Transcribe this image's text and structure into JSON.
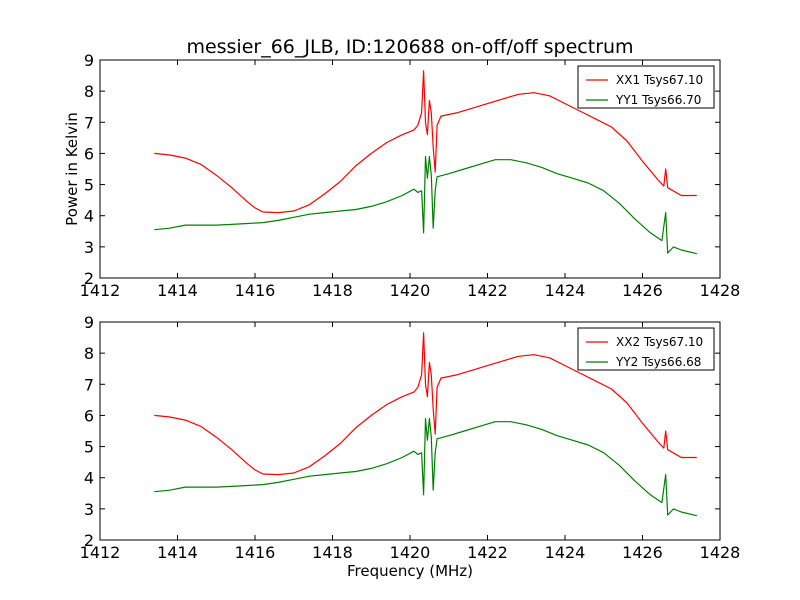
{
  "title": "messier_66_JLB, ID:120688 on-off/off spectrum",
  "chart_data": [
    {
      "type": "line",
      "ylabel": "Power in Kelvin",
      "xlabel": "",
      "xlim": [
        1412,
        1428
      ],
      "ylim": [
        2,
        9
      ],
      "xticks": [
        "1412",
        "1414",
        "1416",
        "1418",
        "1420",
        "1422",
        "1424",
        "1426",
        "1428"
      ],
      "yticks": [
        "2",
        "3",
        "4",
        "5",
        "6",
        "7",
        "8",
        "9"
      ],
      "grid": false,
      "legend": "top-right",
      "series": [
        {
          "name": "XX1 Tsys67.10",
          "color": "#ff0000",
          "points": [
            [
              1413.4,
              6.0
            ],
            [
              1413.8,
              5.95
            ],
            [
              1414.2,
              5.85
            ],
            [
              1414.6,
              5.65
            ],
            [
              1415.0,
              5.3
            ],
            [
              1415.4,
              4.9
            ],
            [
              1415.8,
              4.45
            ],
            [
              1416.0,
              4.25
            ],
            [
              1416.2,
              4.12
            ],
            [
              1416.6,
              4.1
            ],
            [
              1417.0,
              4.15
            ],
            [
              1417.4,
              4.35
            ],
            [
              1417.8,
              4.7
            ],
            [
              1418.2,
              5.1
            ],
            [
              1418.6,
              5.6
            ],
            [
              1419.0,
              6.0
            ],
            [
              1419.4,
              6.35
            ],
            [
              1419.8,
              6.6
            ],
            [
              1420.1,
              6.75
            ],
            [
              1420.2,
              6.9
            ],
            [
              1420.3,
              7.3
            ],
            [
              1420.35,
              8.65
            ],
            [
              1420.4,
              7.0
            ],
            [
              1420.45,
              6.6
            ],
            [
              1420.5,
              7.7
            ],
            [
              1420.55,
              7.3
            ],
            [
              1420.6,
              6.2
            ],
            [
              1420.65,
              5.4
            ],
            [
              1420.7,
              6.9
            ],
            [
              1420.8,
              7.2
            ],
            [
              1421.2,
              7.3
            ],
            [
              1421.6,
              7.45
            ],
            [
              1422.0,
              7.6
            ],
            [
              1422.4,
              7.75
            ],
            [
              1422.8,
              7.9
            ],
            [
              1423.2,
              7.95
            ],
            [
              1423.6,
              7.85
            ],
            [
              1424.0,
              7.6
            ],
            [
              1424.4,
              7.35
            ],
            [
              1424.8,
              7.1
            ],
            [
              1425.2,
              6.85
            ],
            [
              1425.6,
              6.4
            ],
            [
              1426.0,
              5.75
            ],
            [
              1426.4,
              5.15
            ],
            [
              1426.55,
              4.95
            ],
            [
              1426.6,
              5.5
            ],
            [
              1426.65,
              4.9
            ],
            [
              1427.0,
              4.65
            ],
            [
              1427.4,
              4.65
            ]
          ]
        },
        {
          "name": "YY1 Tsys66.70",
          "color": "#008000",
          "points": [
            [
              1413.4,
              3.55
            ],
            [
              1413.8,
              3.6
            ],
            [
              1414.2,
              3.7
            ],
            [
              1414.6,
              3.7
            ],
            [
              1415.0,
              3.7
            ],
            [
              1415.4,
              3.72
            ],
            [
              1415.8,
              3.75
            ],
            [
              1416.2,
              3.78
            ],
            [
              1416.6,
              3.85
            ],
            [
              1417.0,
              3.95
            ],
            [
              1417.4,
              4.05
            ],
            [
              1417.8,
              4.1
            ],
            [
              1418.2,
              4.15
            ],
            [
              1418.6,
              4.2
            ],
            [
              1419.0,
              4.3
            ],
            [
              1419.4,
              4.45
            ],
            [
              1419.8,
              4.65
            ],
            [
              1420.1,
              4.85
            ],
            [
              1420.2,
              4.75
            ],
            [
              1420.3,
              4.8
            ],
            [
              1420.35,
              3.45
            ],
            [
              1420.4,
              5.9
            ],
            [
              1420.45,
              5.2
            ],
            [
              1420.5,
              5.9
            ],
            [
              1420.55,
              5.3
            ],
            [
              1420.6,
              3.6
            ],
            [
              1420.65,
              4.8
            ],
            [
              1420.7,
              5.25
            ],
            [
              1421.0,
              5.35
            ],
            [
              1421.4,
              5.5
            ],
            [
              1421.8,
              5.65
            ],
            [
              1422.2,
              5.8
            ],
            [
              1422.6,
              5.8
            ],
            [
              1423.0,
              5.7
            ],
            [
              1423.4,
              5.55
            ],
            [
              1423.8,
              5.35
            ],
            [
              1424.2,
              5.2
            ],
            [
              1424.6,
              5.05
            ],
            [
              1425.0,
              4.8
            ],
            [
              1425.4,
              4.4
            ],
            [
              1425.8,
              3.9
            ],
            [
              1426.2,
              3.45
            ],
            [
              1426.5,
              3.2
            ],
            [
              1426.6,
              4.1
            ],
            [
              1426.65,
              2.8
            ],
            [
              1426.8,
              3.0
            ],
            [
              1427.0,
              2.9
            ],
            [
              1427.4,
              2.78
            ]
          ]
        }
      ]
    },
    {
      "type": "line",
      "ylabel": "",
      "xlabel": "Frequency (MHz)",
      "xlim": [
        1412,
        1428
      ],
      "ylim": [
        2,
        9
      ],
      "xticks": [
        "1412",
        "1414",
        "1416",
        "1418",
        "1420",
        "1422",
        "1424",
        "1426",
        "1428"
      ],
      "yticks": [
        "2",
        "3",
        "4",
        "5",
        "6",
        "7",
        "8",
        "9"
      ],
      "grid": false,
      "legend": "top-right",
      "series": [
        {
          "name": "XX2 Tsys67.10",
          "color": "#ff0000",
          "points": [
            [
              1413.4,
              6.0
            ],
            [
              1413.8,
              5.95
            ],
            [
              1414.2,
              5.85
            ],
            [
              1414.6,
              5.65
            ],
            [
              1415.0,
              5.3
            ],
            [
              1415.4,
              4.9
            ],
            [
              1415.8,
              4.45
            ],
            [
              1416.0,
              4.25
            ],
            [
              1416.2,
              4.12
            ],
            [
              1416.6,
              4.1
            ],
            [
              1417.0,
              4.15
            ],
            [
              1417.4,
              4.35
            ],
            [
              1417.8,
              4.7
            ],
            [
              1418.2,
              5.1
            ],
            [
              1418.6,
              5.6
            ],
            [
              1419.0,
              6.0
            ],
            [
              1419.4,
              6.35
            ],
            [
              1419.8,
              6.6
            ],
            [
              1420.1,
              6.75
            ],
            [
              1420.2,
              6.9
            ],
            [
              1420.3,
              7.3
            ],
            [
              1420.35,
              8.65
            ],
            [
              1420.4,
              7.0
            ],
            [
              1420.45,
              6.6
            ],
            [
              1420.5,
              7.7
            ],
            [
              1420.55,
              7.3
            ],
            [
              1420.6,
              6.2
            ],
            [
              1420.65,
              5.4
            ],
            [
              1420.7,
              6.9
            ],
            [
              1420.8,
              7.2
            ],
            [
              1421.2,
              7.3
            ],
            [
              1421.6,
              7.45
            ],
            [
              1422.0,
              7.6
            ],
            [
              1422.4,
              7.75
            ],
            [
              1422.8,
              7.9
            ],
            [
              1423.2,
              7.95
            ],
            [
              1423.6,
              7.85
            ],
            [
              1424.0,
              7.6
            ],
            [
              1424.4,
              7.35
            ],
            [
              1424.8,
              7.1
            ],
            [
              1425.2,
              6.85
            ],
            [
              1425.6,
              6.4
            ],
            [
              1426.0,
              5.75
            ],
            [
              1426.4,
              5.15
            ],
            [
              1426.55,
              4.95
            ],
            [
              1426.6,
              5.5
            ],
            [
              1426.65,
              4.9
            ],
            [
              1427.0,
              4.65
            ],
            [
              1427.4,
              4.65
            ]
          ]
        },
        {
          "name": "YY2 Tsys66.68",
          "color": "#008000",
          "points": [
            [
              1413.4,
              3.55
            ],
            [
              1413.8,
              3.6
            ],
            [
              1414.2,
              3.7
            ],
            [
              1414.6,
              3.7
            ],
            [
              1415.0,
              3.7
            ],
            [
              1415.4,
              3.72
            ],
            [
              1415.8,
              3.75
            ],
            [
              1416.2,
              3.78
            ],
            [
              1416.6,
              3.85
            ],
            [
              1417.0,
              3.95
            ],
            [
              1417.4,
              4.05
            ],
            [
              1417.8,
              4.1
            ],
            [
              1418.2,
              4.15
            ],
            [
              1418.6,
              4.2
            ],
            [
              1419.0,
              4.3
            ],
            [
              1419.4,
              4.45
            ],
            [
              1419.8,
              4.65
            ],
            [
              1420.1,
              4.85
            ],
            [
              1420.2,
              4.75
            ],
            [
              1420.3,
              4.8
            ],
            [
              1420.35,
              3.45
            ],
            [
              1420.4,
              5.9
            ],
            [
              1420.45,
              5.2
            ],
            [
              1420.5,
              5.9
            ],
            [
              1420.55,
              5.3
            ],
            [
              1420.6,
              3.6
            ],
            [
              1420.65,
              4.8
            ],
            [
              1420.7,
              5.25
            ],
            [
              1421.0,
              5.35
            ],
            [
              1421.4,
              5.5
            ],
            [
              1421.8,
              5.65
            ],
            [
              1422.2,
              5.8
            ],
            [
              1422.6,
              5.8
            ],
            [
              1423.0,
              5.7
            ],
            [
              1423.4,
              5.55
            ],
            [
              1423.8,
              5.35
            ],
            [
              1424.2,
              5.2
            ],
            [
              1424.6,
              5.05
            ],
            [
              1425.0,
              4.8
            ],
            [
              1425.4,
              4.4
            ],
            [
              1425.8,
              3.9
            ],
            [
              1426.2,
              3.45
            ],
            [
              1426.5,
              3.2
            ],
            [
              1426.6,
              4.1
            ],
            [
              1426.65,
              2.8
            ],
            [
              1426.8,
              3.0
            ],
            [
              1427.0,
              2.9
            ],
            [
              1427.4,
              2.78
            ]
          ]
        }
      ]
    }
  ]
}
